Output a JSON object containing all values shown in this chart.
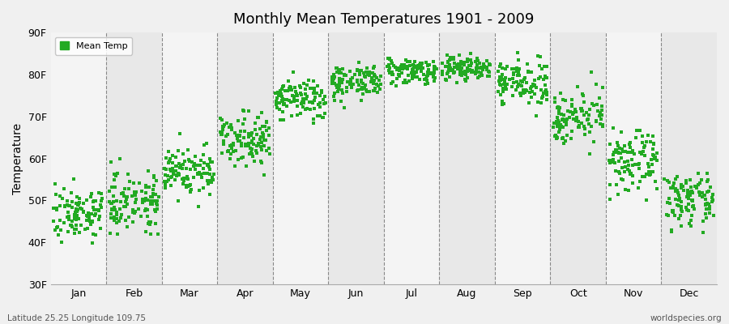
{
  "title": "Monthly Mean Temperatures 1901 - 2009",
  "ylabel": "Temperature",
  "legend_label": "Mean Temp",
  "marker_color": "#22aa22",
  "marker": "s",
  "marker_size": 5,
  "ylim": [
    30,
    90
  ],
  "yticks": [
    30,
    40,
    50,
    60,
    70,
    80,
    90
  ],
  "ytick_labels": [
    "30F",
    "40F",
    "50F",
    "60F",
    "70F",
    "80F",
    "90F"
  ],
  "months": [
    "Jan",
    "Feb",
    "Mar",
    "Apr",
    "May",
    "Jun",
    "Jul",
    "Aug",
    "Sep",
    "Oct",
    "Nov",
    "Dec"
  ],
  "bg_color": "#f0f0f0",
  "plot_bg_light": "#f4f4f4",
  "plot_bg_dark": "#e8e8e8",
  "subtitle_left": "Latitude 25.25 Longitude 109.75",
  "subtitle_right": "worldspecies.org",
  "monthly_means": [
    47.0,
    50.0,
    57.0,
    65.0,
    74.0,
    78.5,
    81.0,
    81.5,
    78.0,
    70.0,
    59.0,
    50.0
  ],
  "monthly_stds": [
    3.0,
    3.5,
    3.0,
    3.0,
    2.5,
    2.0,
    1.5,
    1.5,
    2.5,
    3.0,
    3.5,
    3.0
  ],
  "n_years": 109,
  "year_start": 1901,
  "year_end": 2009,
  "trend_per_year": 0.01
}
